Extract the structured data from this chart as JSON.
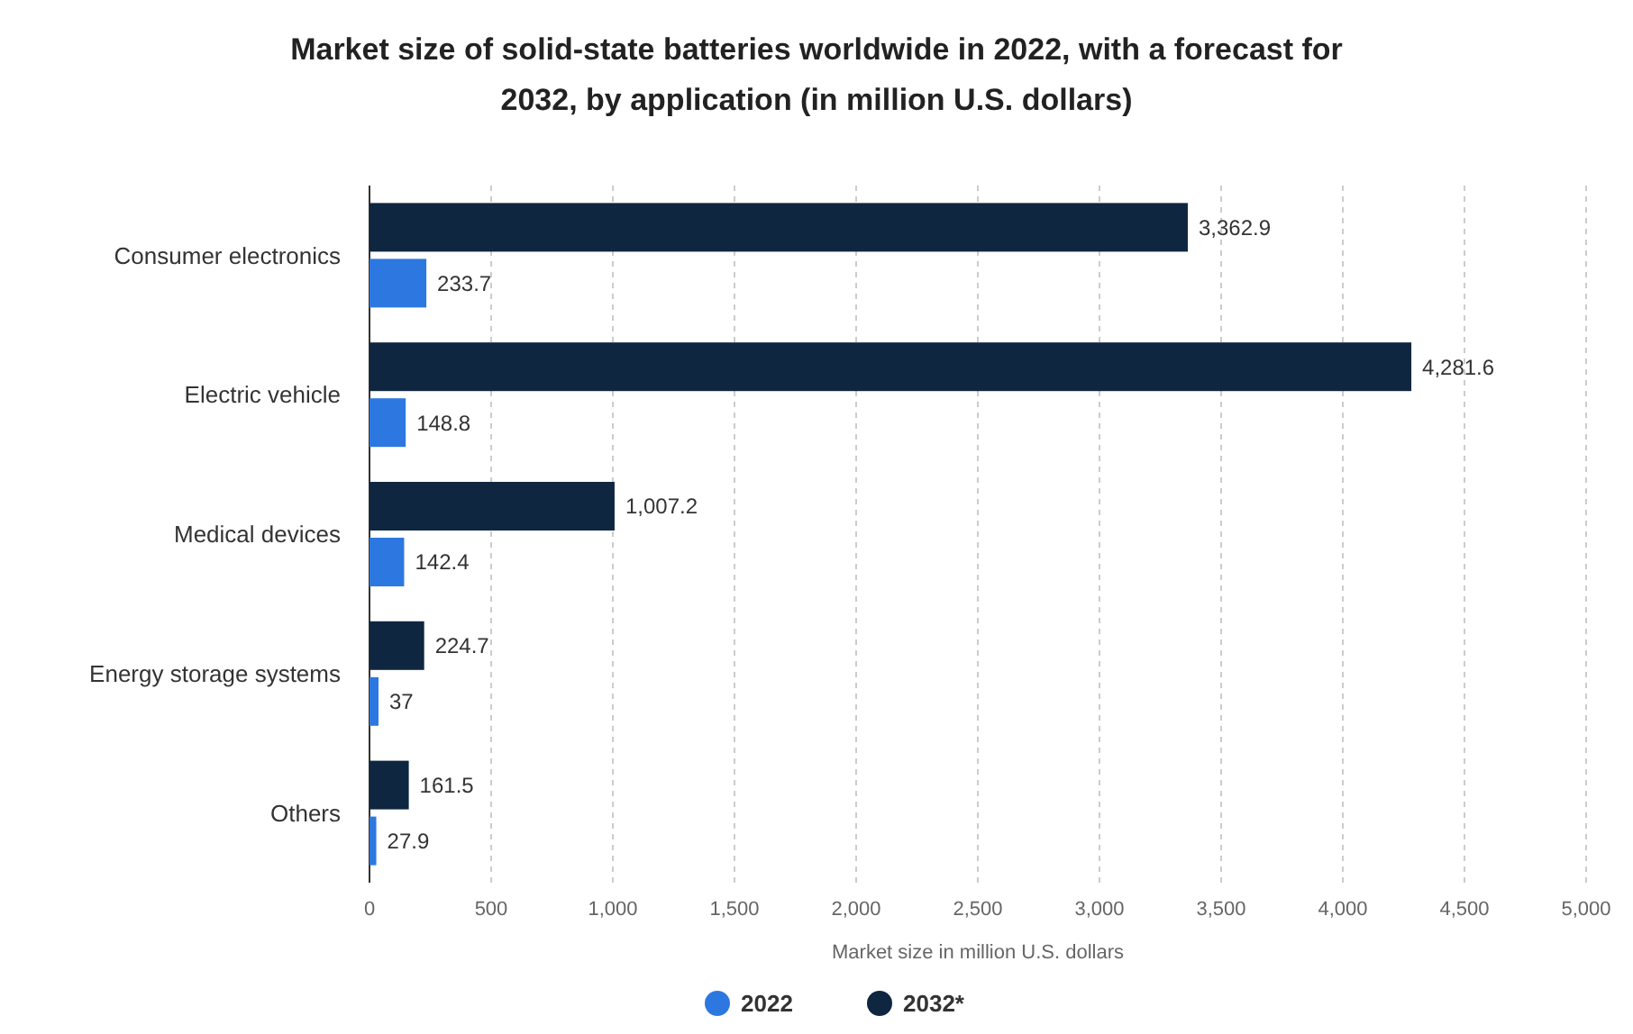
{
  "chart_data": {
    "type": "bar",
    "orientation": "horizontal",
    "title": "Market size of solid-state batteries worldwide in 2022, with a forecast for 2032, by application (in million U.S. dollars)",
    "xlabel": "Market size in million U.S. dollars",
    "categories": [
      "Consumer electronics",
      "Electric vehicle",
      "Medical devices",
      "Energy storage systems",
      "Others"
    ],
    "series": [
      {
        "name": "2022",
        "color": "#2d78e0",
        "values": [
          233.7,
          148.8,
          142.4,
          37,
          27.9
        ],
        "value_labels": [
          "233.7",
          "148.8",
          "142.4",
          "37",
          "27.9"
        ]
      },
      {
        "name": "2032*",
        "color": "#0f2640",
        "values": [
          3362.9,
          4281.6,
          1007.2,
          224.7,
          161.5
        ],
        "value_labels": [
          "3,362.9",
          "4,281.6",
          "1,007.2",
          "224.7",
          "161.5"
        ]
      }
    ],
    "xlim": [
      0,
      5000
    ],
    "xticks": [
      {
        "value": 0,
        "label": "0"
      },
      {
        "value": 500,
        "label": "500"
      },
      {
        "value": 1000,
        "label": "1,000"
      },
      {
        "value": 1500,
        "label": "1,500"
      },
      {
        "value": 2000,
        "label": "2,000"
      },
      {
        "value": 2500,
        "label": "2,500"
      },
      {
        "value": 3000,
        "label": "3,000"
      },
      {
        "value": 3500,
        "label": "3,500"
      },
      {
        "value": 4000,
        "label": "4,000"
      },
      {
        "value": 4500,
        "label": "4,500"
      },
      {
        "value": 5000,
        "label": "5,000"
      }
    ],
    "grid": "x",
    "legend": "bottom"
  }
}
